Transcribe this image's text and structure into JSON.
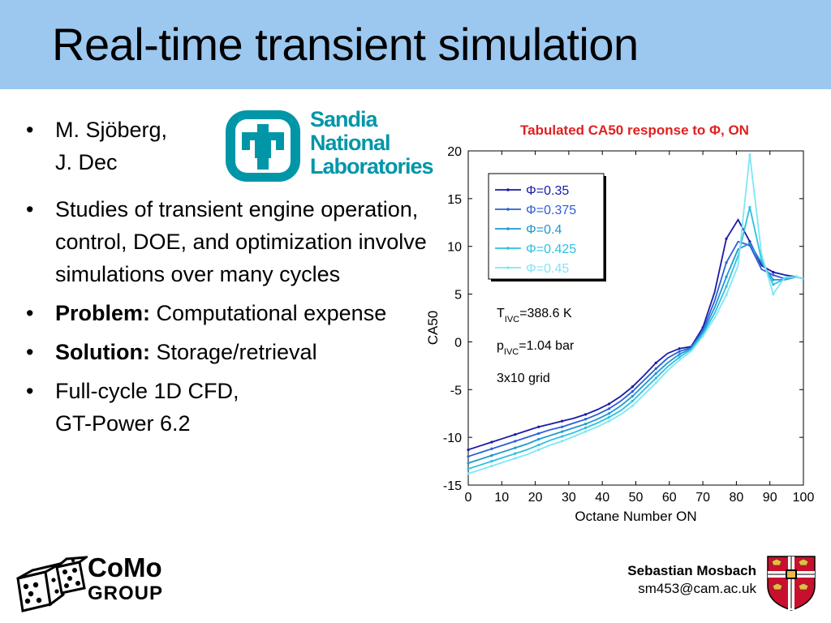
{
  "slide": {
    "title": "Real-time transient simulation"
  },
  "bullets": {
    "authors_line1": "M. Sjöberg,",
    "authors_line2": "J. Dec",
    "studies": "Studies of transient engine operation, control, DOE, and optimization involve simulations over many cycles",
    "problem_label": "Problem:",
    "problem_text": " Computational expense",
    "solution_label": "Solution:",
    "solution_text": " Storage/retrieval",
    "cfd_line1": "Full-cycle 1D CFD,",
    "cfd_line2": "GT-Power 6.2",
    "dot": "•"
  },
  "logo": {
    "line1": "Sandia",
    "line2": "National",
    "line3": "Laboratories"
  },
  "footer": {
    "como": "CoMo",
    "group": "GROUP",
    "author": "Sebastian Mosbach",
    "email": "sm453@cam.ac.uk"
  },
  "colors": {
    "title_bar": "#9cc8f0",
    "chart_title": "#e02020",
    "sandia": "#0096a8"
  },
  "chart_data": {
    "type": "line",
    "title": "Tabulated CA50 response to Φ, ON",
    "xlabel": "Octane Number ON",
    "ylabel": "CA50",
    "xlim": [
      0,
      100
    ],
    "ylim": [
      -15,
      20
    ],
    "xticks": [
      0,
      10,
      20,
      30,
      40,
      50,
      60,
      70,
      80,
      90,
      100
    ],
    "yticks": [
      -15,
      -10,
      -5,
      0,
      5,
      10,
      15,
      20
    ],
    "grid": false,
    "legend_position": "top-left",
    "annotations": [
      "T_IVC=388.6 K",
      "p_IVC=1.04 bar",
      "3x10 grid"
    ],
    "x": [
      0,
      3.5,
      7,
      10.5,
      14,
      17.5,
      21,
      24.5,
      28,
      31.5,
      35,
      38.5,
      42,
      45.5,
      49,
      52.5,
      56,
      59.5,
      63,
      66.5,
      70,
      73.5,
      77,
      80.5,
      84,
      87.5,
      91,
      94.5,
      98,
      100
    ],
    "series": [
      {
        "name": "Φ=0.35",
        "color": "#1a1aa8",
        "values": [
          -11.3,
          -10.9,
          -10.5,
          -10.1,
          -9.7,
          -9.3,
          -8.9,
          -8.6,
          -8.3,
          -8.0,
          -7.6,
          -7.1,
          -6.5,
          -5.7,
          -4.7,
          -3.5,
          -2.2,
          -1.2,
          -0.7,
          -0.5,
          1.5,
          5.2,
          10.8,
          12.8,
          10.5,
          8.0,
          7.3,
          7.0,
          6.8,
          6.6
        ]
      },
      {
        "name": "Φ=0.375",
        "color": "#2d5ed8",
        "values": [
          -12.0,
          -11.6,
          -11.2,
          -10.8,
          -10.4,
          -10.0,
          -9.6,
          -9.2,
          -8.9,
          -8.5,
          -8.1,
          -7.6,
          -7.0,
          -6.2,
          -5.2,
          -4.0,
          -2.8,
          -1.7,
          -1.0,
          -0.6,
          1.2,
          4.3,
          8.3,
          10.5,
          10.1,
          7.6,
          7.0,
          6.6,
          6.8,
          6.6
        ]
      },
      {
        "name": "Φ=0.4",
        "color": "#1e98d0",
        "values": [
          -12.7,
          -12.3,
          -11.9,
          -11.5,
          -11.1,
          -10.7,
          -10.2,
          -9.8,
          -9.4,
          -9.0,
          -8.6,
          -8.1,
          -7.5,
          -6.7,
          -5.7,
          -4.5,
          -3.3,
          -2.2,
          -1.3,
          -0.7,
          1.0,
          3.6,
          6.8,
          9.7,
          10.3,
          8.3,
          6.5,
          6.5,
          6.8,
          6.6
        ]
      },
      {
        "name": "Φ=0.425",
        "color": "#2fc0e0",
        "values": [
          -13.3,
          -12.9,
          -12.5,
          -12.1,
          -11.7,
          -11.3,
          -10.8,
          -10.3,
          -9.9,
          -9.5,
          -9.0,
          -8.5,
          -7.9,
          -7.2,
          -6.2,
          -5.0,
          -3.8,
          -2.6,
          -1.6,
          -0.8,
          0.8,
          3.0,
          5.8,
          9.0,
          14.1,
          8.6,
          6.0,
          6.6,
          6.8,
          6.6
        ]
      },
      {
        "name": "Φ=0.45",
        "color": "#7fe6f5",
        "values": [
          -13.8,
          -13.4,
          -13.0,
          -12.6,
          -12.2,
          -11.8,
          -11.3,
          -10.8,
          -10.4,
          -9.9,
          -9.4,
          -8.9,
          -8.3,
          -7.6,
          -6.7,
          -5.5,
          -4.3,
          -3.0,
          -1.9,
          -1.0,
          0.6,
          2.5,
          4.9,
          8.0,
          19.6,
          9.2,
          5.0,
          6.8,
          6.8,
          6.6
        ]
      }
    ]
  }
}
